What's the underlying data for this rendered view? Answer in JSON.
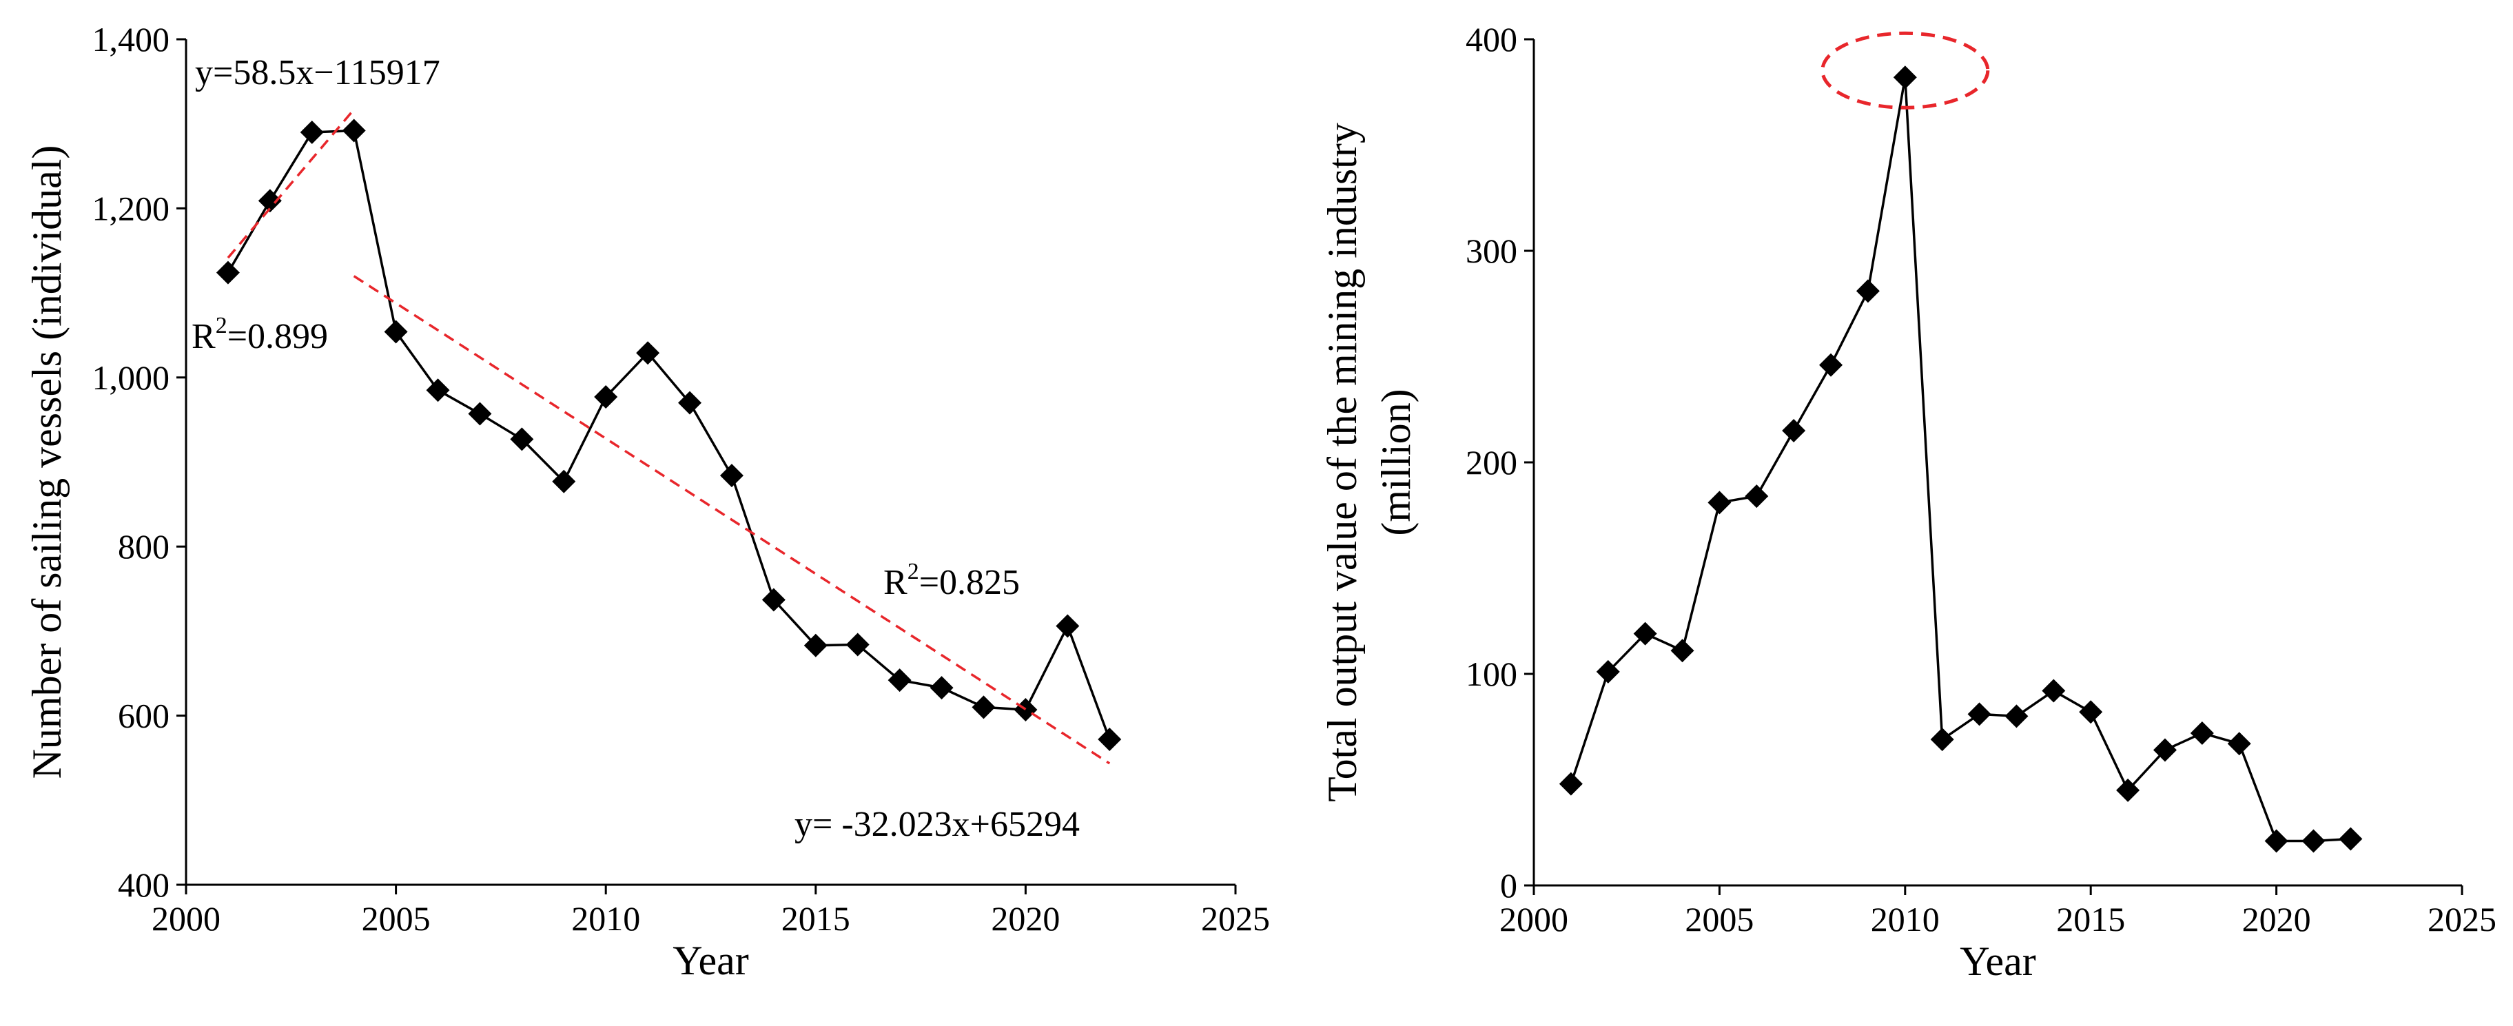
{
  "chart_data": [
    {
      "type": "line",
      "title": "",
      "xlabel": "Year",
      "ylabel": "Number of sailing vessels (individual)",
      "xlim": [
        2000,
        2025
      ],
      "ylim": [
        400,
        1400
      ],
      "xticks": [
        2000,
        2005,
        2010,
        2015,
        2020,
        2025
      ],
      "yticks": [
        400,
        600,
        800,
        1000,
        1200,
        1400
      ],
      "ytick_labels": [
        "400",
        "600",
        "800",
        "1,000",
        "1,200",
        "1,400"
      ],
      "grid": false,
      "series": [
        {
          "name": "Number of sailing vessels",
          "marker": "diamond",
          "color": "#000000",
          "x": [
            2001,
            2002,
            2003,
            2004,
            2005,
            2006,
            2007,
            2008,
            2009,
            2010,
            2011,
            2012,
            2013,
            2014,
            2015,
            2016,
            2017,
            2018,
            2019,
            2020,
            2021,
            2022
          ],
          "values": [
            1124,
            1209,
            1290,
            1292,
            1054,
            985,
            957,
            927,
            877,
            977,
            1029,
            970,
            884,
            737,
            683,
            684,
            642,
            633,
            610,
            607,
            706,
            572
          ]
        }
      ],
      "trendlines": [
        {
          "color": "#e8262b",
          "style": "dashed",
          "slope": 58.5,
          "intercept": -115917,
          "x_range": [
            2001,
            2004
          ],
          "equation": "y=58.5x−115917",
          "r2_prefix": "R",
          "r2_sup": "2",
          "r2_value": "=0.899"
        },
        {
          "color": "#e8262b",
          "style": "dashed",
          "slope": -32.023,
          "intercept": 65294,
          "x_range": [
            2004,
            2022
          ],
          "equation": "y= -32.023x+65294",
          "r2_prefix": "R",
          "r2_sup": "2",
          "r2_value": "=0.825"
        }
      ]
    },
    {
      "type": "line",
      "title": "",
      "xlabel": "Year",
      "ylabel_line1": "Total output value of the mining industry",
      "ylabel_line2": "(million)",
      "xlim": [
        2000,
        2025
      ],
      "ylim": [
        0,
        400
      ],
      "xticks": [
        2000,
        2005,
        2010,
        2015,
        2020,
        2025
      ],
      "yticks": [
        0,
        100,
        200,
        300,
        400
      ],
      "ytick_labels": [
        "0",
        "100",
        "200",
        "300",
        "400"
      ],
      "grid": false,
      "series": [
        {
          "name": "Total output value of the mining industry",
          "marker": "diamond",
          "color": "#000000",
          "x": [
            2001,
            2002,
            2003,
            2004,
            2005,
            2006,
            2007,
            2008,
            2009,
            2010,
            2011,
            2012,
            2013,
            2014,
            2015,
            2016,
            2017,
            2018,
            2019,
            2020,
            2021,
            2022
          ],
          "values": [
            48,
            101,
            119,
            111,
            181,
            184,
            215,
            246,
            281,
            382,
            69,
            81,
            80,
            92,
            82,
            45,
            64,
            72,
            67,
            21,
            21,
            22
          ]
        }
      ],
      "highlight": {
        "x": 2010,
        "value": 382,
        "shape": "dashed-ellipse",
        "color": "#e8262b"
      }
    }
  ]
}
